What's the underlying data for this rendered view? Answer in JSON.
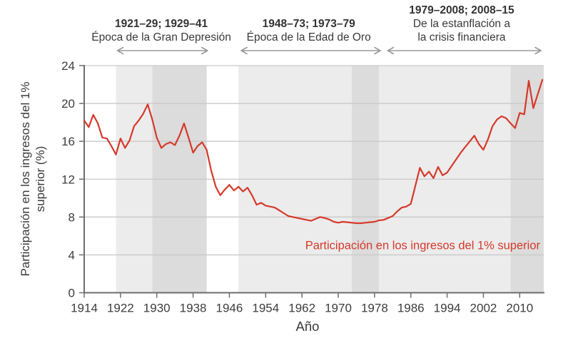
{
  "figure": {
    "xlabel": "Año",
    "ylabel_line1": "Participación en los ingresos del 1%",
    "ylabel_line2": "superior (%)",
    "series_label": "Participación en los ingresos del 1% superior"
  },
  "eras": [
    {
      "title": "1921–29; 1929–41",
      "subtitle1": "Época de la Gran Depresión",
      "subtitle2": "",
      "arrow_from": 1921,
      "arrow_to": 1941.5,
      "center_year": 1931
    },
    {
      "title": "1948–73; 1973–79",
      "subtitle1": "Época de la Edad de Oro",
      "subtitle2": "",
      "arrow_from": 1948.3,
      "arrow_to": 1979.6,
      "center_year": 1963.5
    },
    {
      "title": "1979–2008; 2008–15",
      "subtitle1": "De la estanflación a",
      "subtitle2": "la crisis financiera",
      "arrow_from": 1980.6,
      "arrow_to": 2015,
      "center_year": 1997.2
    }
  ],
  "colors": {
    "line": "#d6392b",
    "series_label": "#d6392b",
    "band_light": "#ececec",
    "band_dark": "#dcdcdc",
    "grid": "#c9c9c9",
    "axis": "#6e6e6e",
    "arrow": "#9a9a9a",
    "text": "#3a3a3a"
  },
  "chart_data": {
    "type": "line",
    "title": "",
    "xlabel": "Año",
    "ylabel": "Participación en los ingresos del 1% superior (%)",
    "xlim": [
      1914,
      2015.3
    ],
    "ylim": [
      0,
      24
    ],
    "xticks": [
      1914,
      1922,
      1930,
      1938,
      1946,
      1954,
      1962,
      1970,
      1978,
      1986,
      1994,
      2002,
      2010
    ],
    "yticks": [
      0,
      4,
      8,
      12,
      16,
      20,
      24
    ],
    "grid": "horizontal",
    "legend_position": "inside-right",
    "bands": [
      {
        "from": 1921,
        "to": 1929,
        "shade": "light",
        "label": "1921–29"
      },
      {
        "from": 1929,
        "to": 1941,
        "shade": "dark",
        "label": "1929–41"
      },
      {
        "from": 1948,
        "to": 1973,
        "shade": "light",
        "label": "1948–73"
      },
      {
        "from": 1973,
        "to": 1979,
        "shade": "dark",
        "label": "1973–79"
      },
      {
        "from": 1979,
        "to": 2008,
        "shade": "light",
        "label": "1979–2008"
      },
      {
        "from": 2008,
        "to": 2015.3,
        "shade": "dark",
        "label": "2008–15"
      }
    ],
    "series": [
      {
        "name": "Participación en los ingresos del 1% superior",
        "color": "#d6392b",
        "x": [
          1914,
          1915,
          1916,
          1917,
          1918,
          1919,
          1920,
          1921,
          1922,
          1923,
          1924,
          1925,
          1926,
          1927,
          1928,
          1929,
          1930,
          1931,
          1932,
          1933,
          1934,
          1935,
          1936,
          1937,
          1938,
          1939,
          1940,
          1941,
          1942,
          1943,
          1944,
          1945,
          1946,
          1947,
          1948,
          1949,
          1950,
          1951,
          1952,
          1953,
          1954,
          1955,
          1956,
          1957,
          1958,
          1959,
          1960,
          1961,
          1962,
          1963,
          1964,
          1965,
          1966,
          1967,
          1968,
          1969,
          1970,
          1971,
          1972,
          1973,
          1974,
          1975,
          1976,
          1977,
          1978,
          1979,
          1980,
          1981,
          1982,
          1983,
          1984,
          1985,
          1986,
          1987,
          1988,
          1989,
          1990,
          1991,
          1992,
          1993,
          1994,
          1995,
          1996,
          1997,
          1998,
          1999,
          2000,
          2001,
          2002,
          2003,
          2004,
          2005,
          2006,
          2007,
          2008,
          2009,
          2010,
          2011,
          2012,
          2013,
          2014,
          2015
        ],
        "y": [
          18.2,
          17.5,
          18.8,
          17.9,
          16.4,
          16.3,
          15.5,
          14.6,
          16.3,
          15.3,
          16.1,
          17.6,
          18.2,
          18.9,
          19.9,
          18.3,
          16.4,
          15.3,
          15.7,
          15.9,
          15.6,
          16.6,
          17.9,
          16.4,
          14.8,
          15.5,
          15.9,
          15.1,
          12.9,
          11.2,
          10.3,
          10.9,
          11.4,
          10.8,
          11.2,
          10.7,
          11.1,
          10.3,
          9.3,
          9.5,
          9.2,
          9.1,
          9.0,
          8.7,
          8.4,
          8.1,
          8.0,
          7.9,
          7.8,
          7.7,
          7.6,
          7.8,
          8.0,
          7.9,
          7.75,
          7.5,
          7.4,
          7.5,
          7.45,
          7.4,
          7.35,
          7.35,
          7.4,
          7.45,
          7.5,
          7.65,
          7.7,
          7.9,
          8.1,
          8.6,
          9.0,
          9.1,
          9.4,
          11.3,
          13.2,
          12.3,
          12.8,
          12.1,
          13.3,
          12.4,
          12.7,
          13.4,
          14.1,
          14.8,
          15.4,
          16.0,
          16.6,
          15.7,
          15.1,
          16.2,
          17.6,
          18.3,
          18.65,
          18.45,
          17.9,
          17.4,
          19.0,
          18.85,
          22.4,
          19.5,
          21.0,
          22.5
        ]
      }
    ]
  }
}
